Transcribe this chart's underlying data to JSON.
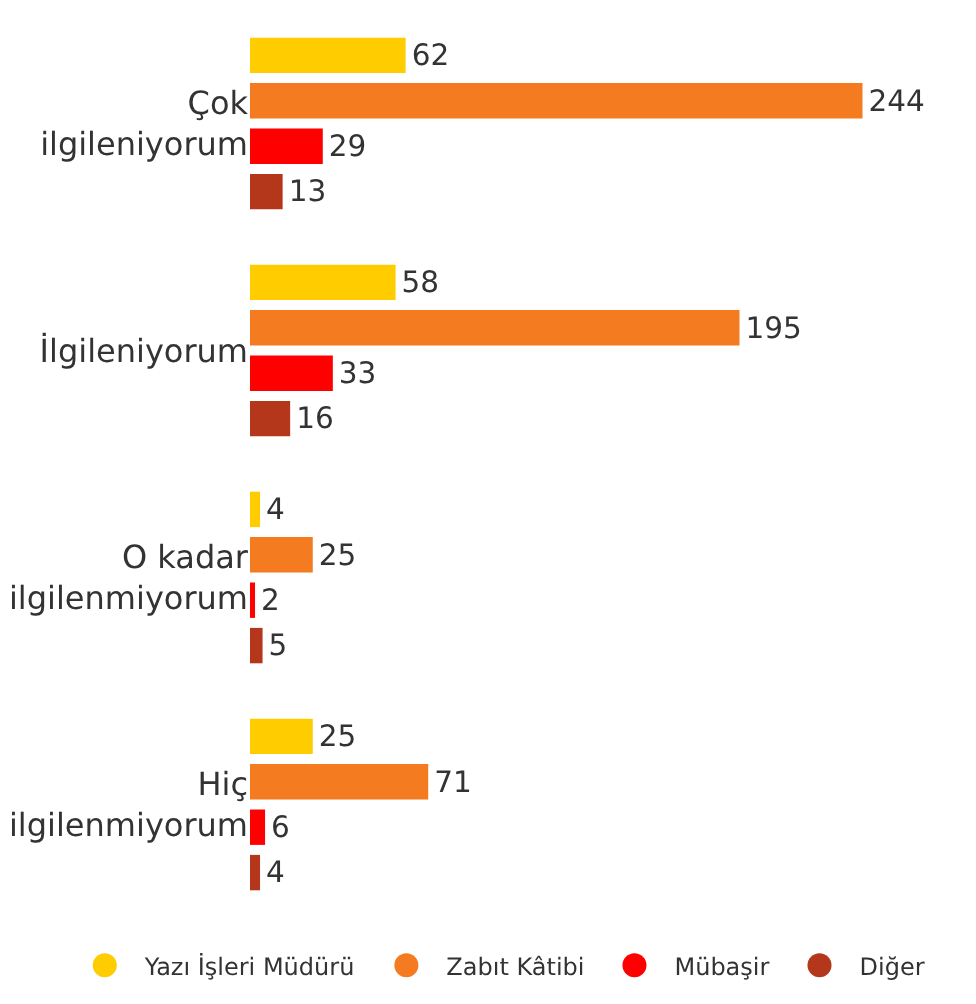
{
  "chart_data": {
    "type": "bar",
    "orientation": "horizontal",
    "categories": [
      "Çok ilgileniyorum",
      "İlgileniyorum",
      "O kadar ilgilenmiyorum",
      "Hiç ilgilenmiyorum"
    ],
    "series": [
      {
        "name": "Yazı İşleri Müdürü",
        "color": "#ffcc00",
        "values": [
          62,
          58,
          4,
          25
        ]
      },
      {
        "name": "Zabıt Kâtibi",
        "color": "#f47b20",
        "values": [
          244,
          195,
          25,
          71
        ]
      },
      {
        "name": "Mübaşir",
        "color": "#ff0000",
        "values": [
          29,
          33,
          2,
          6
        ]
      },
      {
        "name": "Diğer",
        "color": "#b5371b",
        "values": [
          13,
          16,
          5,
          4
        ]
      }
    ],
    "data_labels": true,
    "legend": "bottom"
  }
}
